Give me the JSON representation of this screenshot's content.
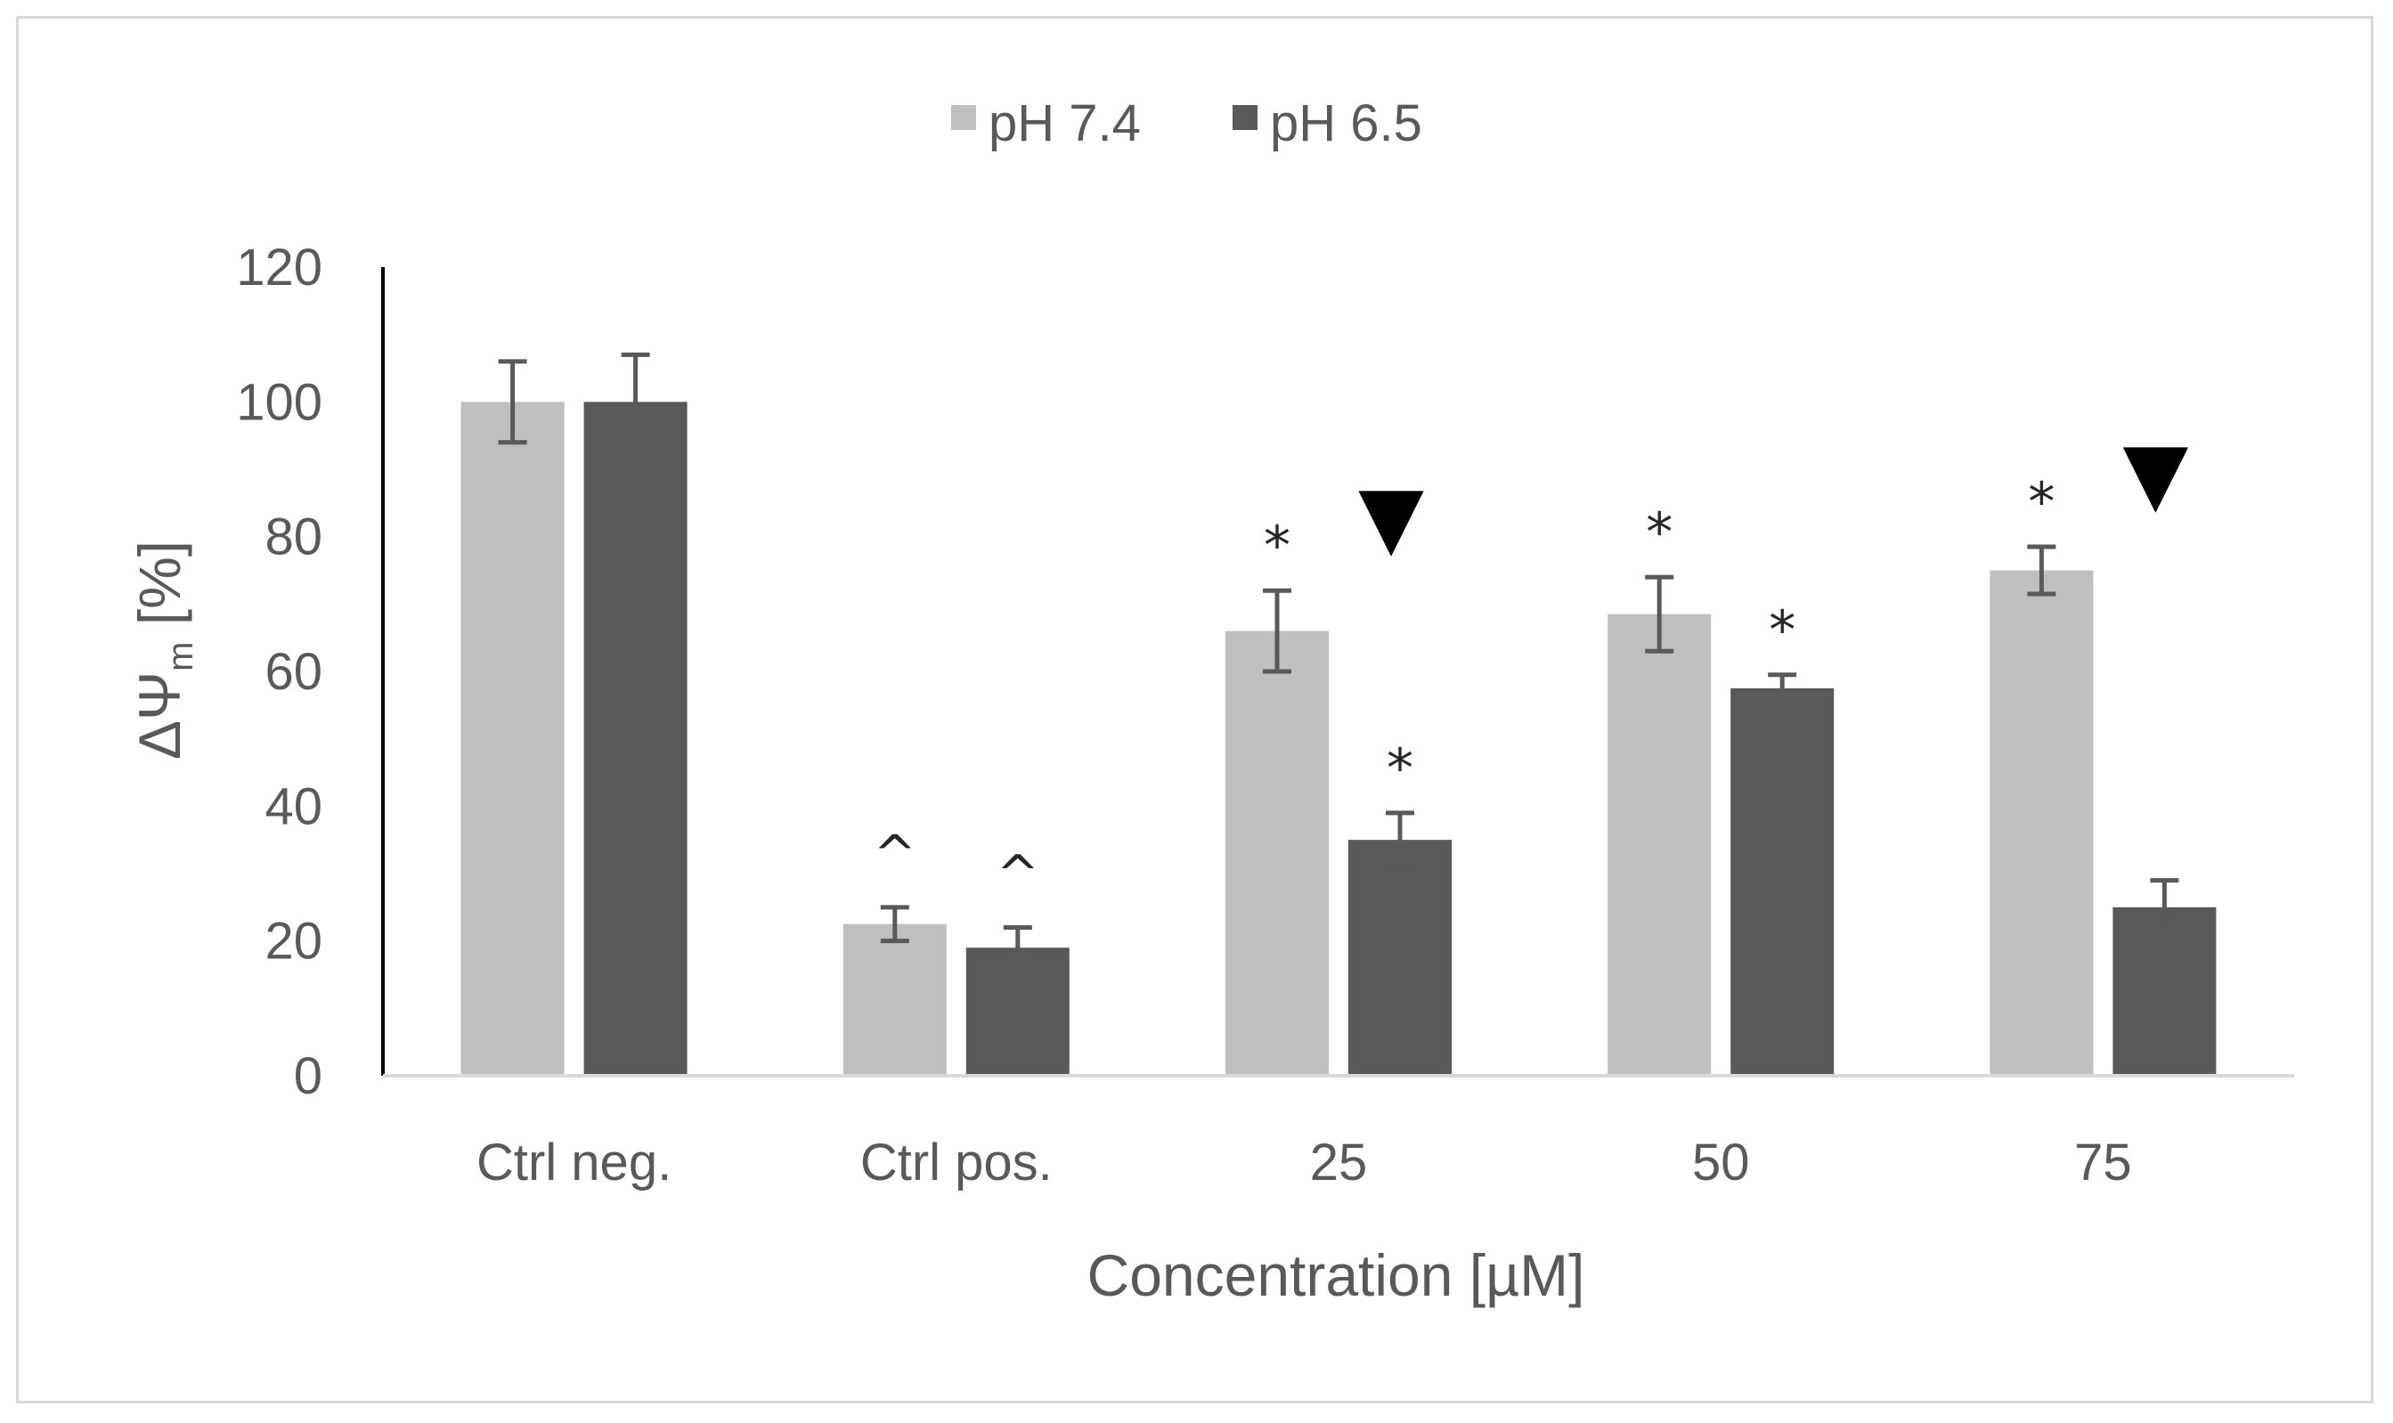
{
  "chart_data": {
    "type": "bar",
    "categories": [
      "Ctrl neg.",
      "Ctrl pos.",
      "25",
      "50",
      "75"
    ],
    "series": [
      {
        "name": "pH 7.4",
        "color": "#bfbfbf",
        "values": [
          100,
          22.5,
          66,
          68.5,
          75
        ],
        "errors": [
          6,
          2.5,
          6,
          5.5,
          3.5
        ],
        "markers": [
          "",
          "^",
          "*",
          "*",
          "*"
        ]
      },
      {
        "name": "pH 6.5",
        "color": "#595959",
        "values": [
          100,
          19,
          35,
          57.5,
          25
        ],
        "errors": [
          7,
          3,
          4,
          2,
          4
        ],
        "markers": [
          "",
          "^",
          "*",
          "*",
          ""
        ]
      }
    ],
    "group_markers": [
      "",
      "",
      "▼",
      "",
      "▼"
    ],
    "yticks": [
      0,
      20,
      40,
      60,
      80,
      100,
      120
    ],
    "ylim": [
      0,
      120
    ],
    "ylabel": {
      "main": "ΔΨ",
      "sub": "m",
      "unit": " [%]"
    },
    "xlabel": "Concentration [µM]",
    "title": "",
    "legend_position": "top-center"
  }
}
